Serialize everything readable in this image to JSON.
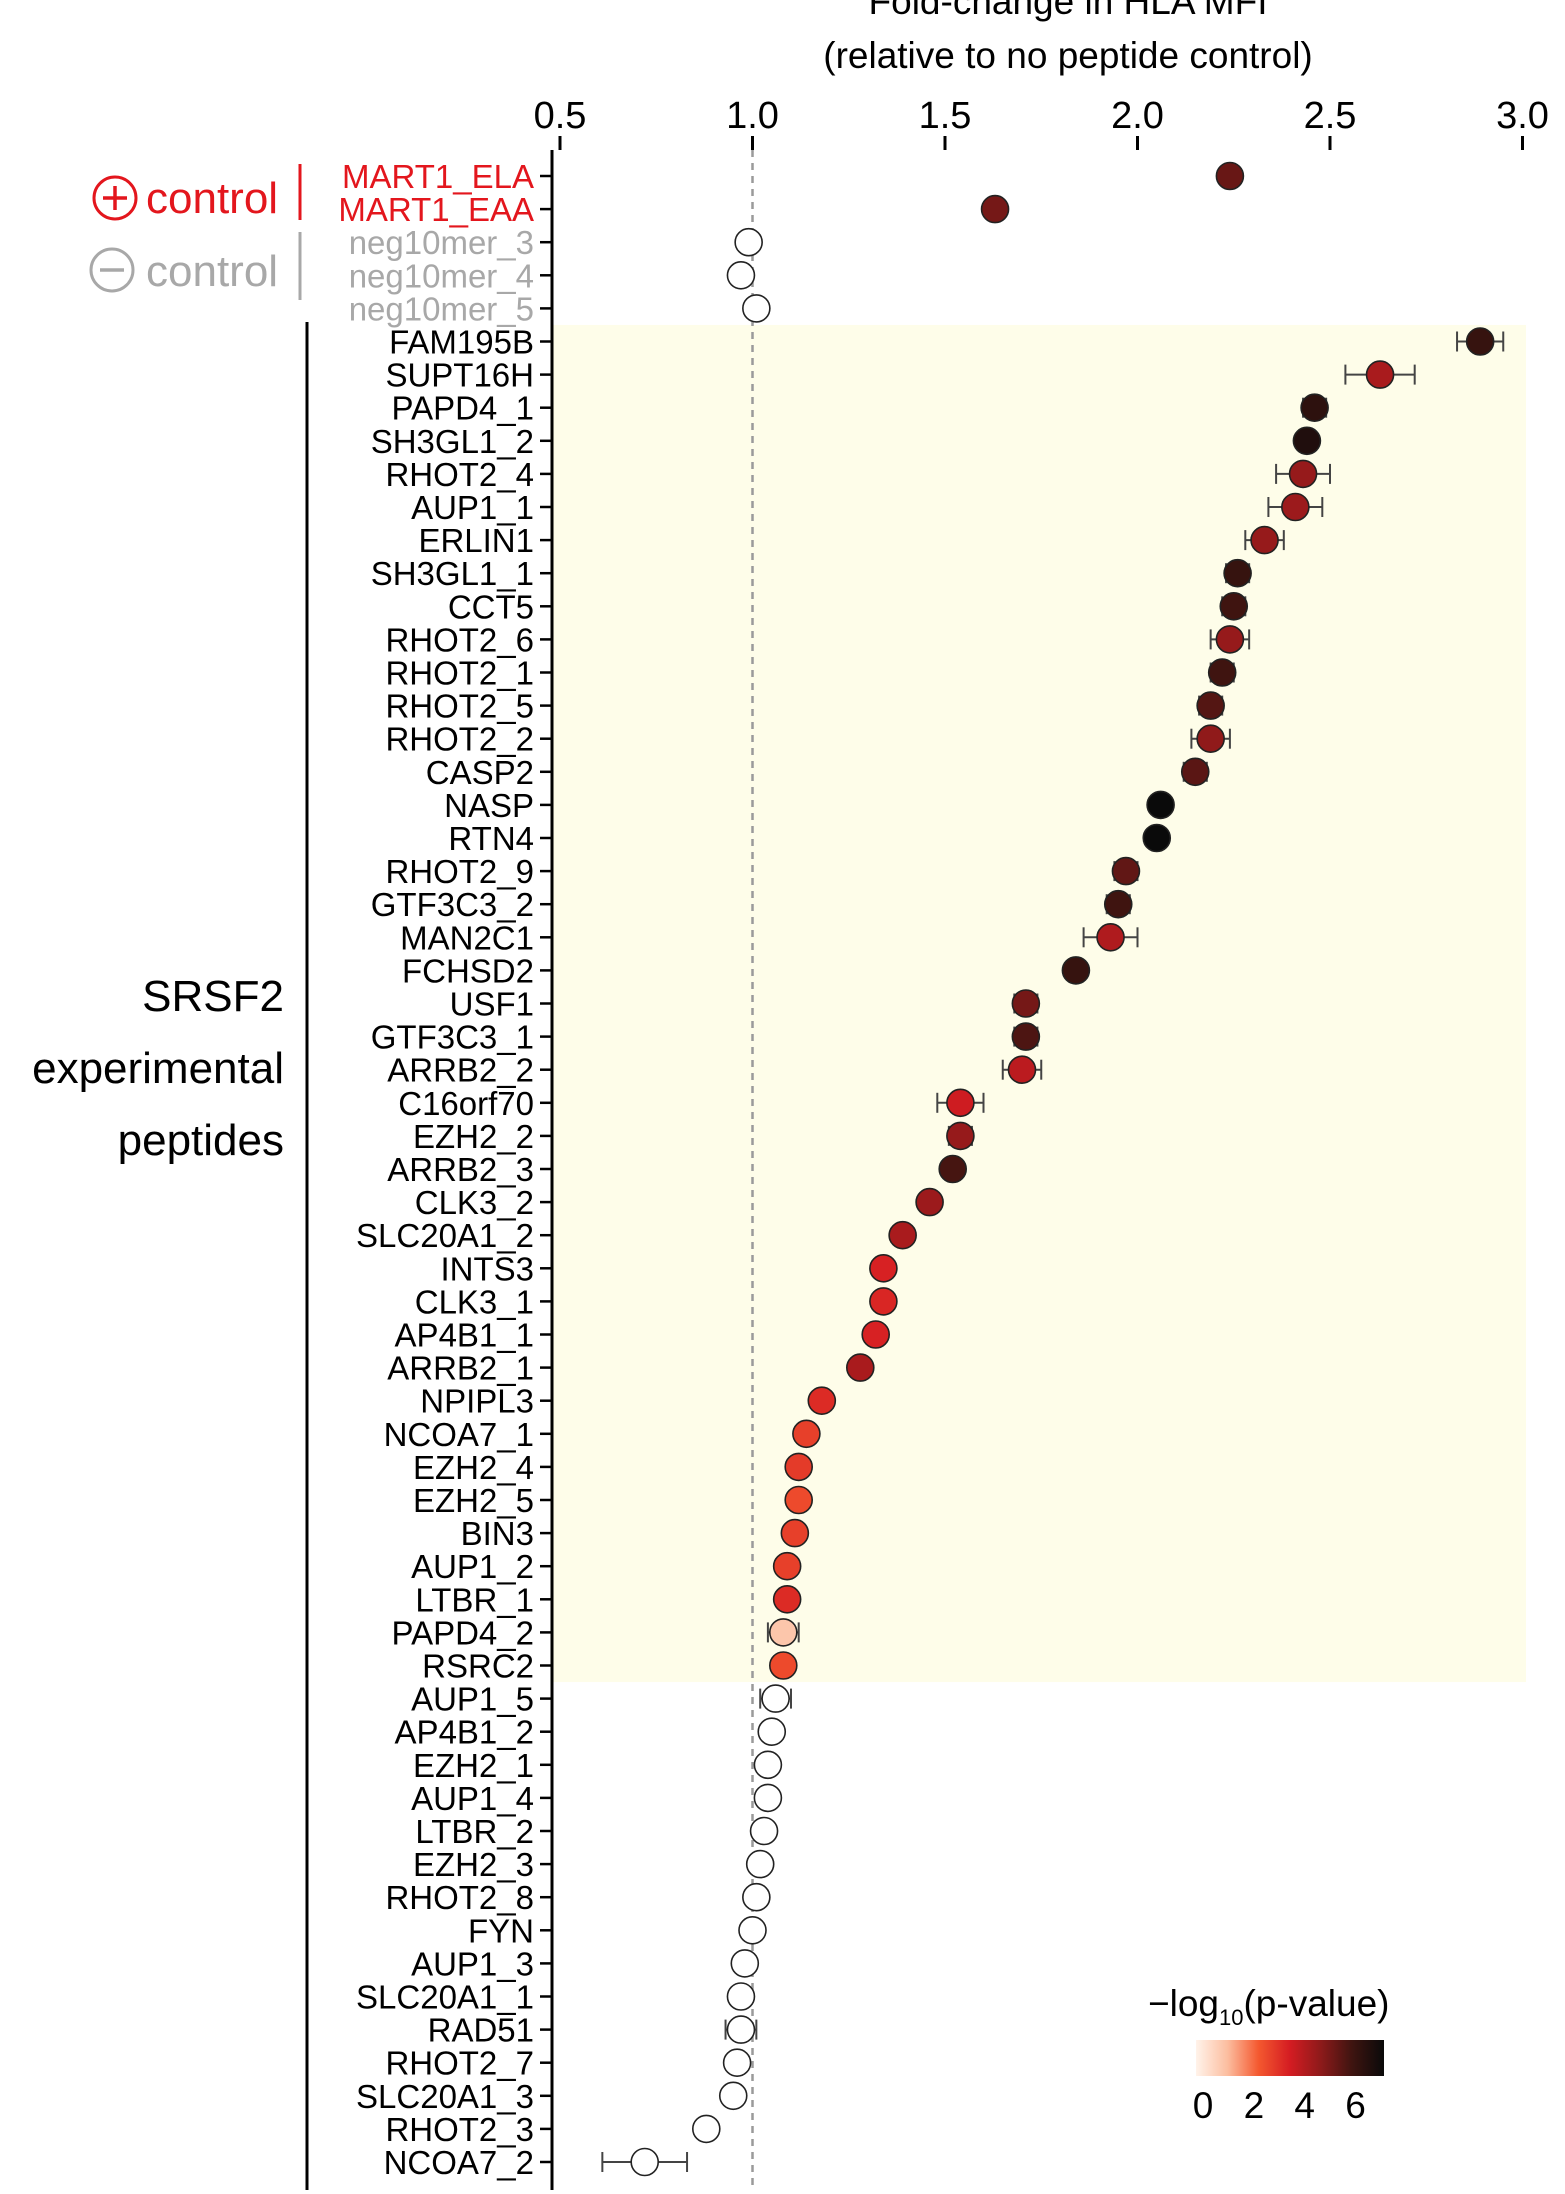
{
  "chart_data": {
    "type": "scatter",
    "title": "Fold-change in HLA MFI",
    "subtitle": "(relative to no peptide control)",
    "xlabel": "Fold-change in HLA MFI",
    "ylabel": "",
    "xlim": [
      0.5,
      3.0
    ],
    "x_ticks": [
      "0.5",
      "1.0",
      "1.5",
      "2.0",
      "2.5",
      "3.0"
    ],
    "reference_line_x": 1.0,
    "groups": {
      "positive": "control",
      "negative": "control",
      "experimental": [
        "SRSF2",
        "experimental",
        "peptides"
      ]
    },
    "colorbar": {
      "label_prefix": "−log",
      "label_sub": "10",
      "label_suffix": "(p-value)",
      "ticks": [
        "0",
        "2",
        "4",
        "6"
      ],
      "range": [
        0,
        7
      ]
    },
    "colors": {
      "positive_control": "#e3161d",
      "negative_control": "#a8a8a8",
      "highlight_band": "#fefde9",
      "reference_line": "#9a9a9a",
      "colormap": [
        "#fff3ea",
        "#fcbea0",
        "#f4582f",
        "#d41c22",
        "#8c1a1a",
        "#3d1410",
        "#0a0a0a"
      ]
    },
    "points": [
      {
        "label": "MART1_ELA",
        "x": 2.24,
        "p": 5.2,
        "group": "positive"
      },
      {
        "label": "MART1_EAA",
        "x": 1.63,
        "p": 5.0,
        "group": "positive"
      },
      {
        "label": "neg10mer_3",
        "x": 0.99,
        "p": null,
        "group": "negative"
      },
      {
        "label": "neg10mer_4",
        "x": 0.97,
        "p": null,
        "group": "negative"
      },
      {
        "label": "neg10mer_5",
        "x": 1.01,
        "p": null,
        "group": "negative"
      },
      {
        "label": "FAM195B",
        "x": 2.89,
        "p": 6.0,
        "err": 0.06,
        "group": "experimental"
      },
      {
        "label": "SUPT16H",
        "x": 2.63,
        "p": 4.2,
        "err": 0.09,
        "group": "experimental"
      },
      {
        "label": "PAPD4_1",
        "x": 2.46,
        "p": 6.2,
        "err": 0.03,
        "group": "experimental"
      },
      {
        "label": "SH3GL1_2",
        "x": 2.44,
        "p": 6.5,
        "group": "experimental"
      },
      {
        "label": "RHOT2_4",
        "x": 2.43,
        "p": 4.5,
        "err": 0.07,
        "group": "experimental"
      },
      {
        "label": "AUP1_1",
        "x": 2.41,
        "p": 4.4,
        "err": 0.07,
        "group": "experimental"
      },
      {
        "label": "ERLIN1",
        "x": 2.33,
        "p": 4.5,
        "err": 0.05,
        "group": "experimental"
      },
      {
        "label": "SH3GL1_1",
        "x": 2.26,
        "p": 6.0,
        "err": 0.03,
        "group": "experimental"
      },
      {
        "label": "CCT5",
        "x": 2.25,
        "p": 5.8,
        "err": 0.03,
        "group": "experimental"
      },
      {
        "label": "RHOT2_6",
        "x": 2.24,
        "p": 4.5,
        "err": 0.05,
        "group": "experimental"
      },
      {
        "label": "RHOT2_1",
        "x": 2.22,
        "p": 5.8,
        "err": 0.03,
        "group": "experimental"
      },
      {
        "label": "RHOT2_5",
        "x": 2.19,
        "p": 5.5,
        "err": 0.03,
        "group": "experimental"
      },
      {
        "label": "RHOT2_2",
        "x": 2.19,
        "p": 4.6,
        "err": 0.05,
        "group": "experimental"
      },
      {
        "label": "CASP2",
        "x": 2.15,
        "p": 5.4,
        "err": 0.03,
        "group": "experimental"
      },
      {
        "label": "NASP",
        "x": 2.06,
        "p": 7.0,
        "group": "experimental"
      },
      {
        "label": "RTN4",
        "x": 2.05,
        "p": 7.0,
        "group": "experimental"
      },
      {
        "label": "RHOT2_9",
        "x": 1.97,
        "p": 5.3,
        "err": 0.03,
        "group": "experimental"
      },
      {
        "label": "GTF3C3_2",
        "x": 1.95,
        "p": 5.8,
        "err": 0.03,
        "group": "experimental"
      },
      {
        "label": "MAN2C1",
        "x": 1.93,
        "p": 4.1,
        "err": 0.07,
        "group": "experimental"
      },
      {
        "label": "FCHSD2",
        "x": 1.84,
        "p": 6.0,
        "group": "experimental"
      },
      {
        "label": "USF1",
        "x": 1.71,
        "p": 5.0,
        "err": 0.03,
        "group": "experimental"
      },
      {
        "label": "GTF3C3_1",
        "x": 1.71,
        "p": 5.6,
        "err": 0.03,
        "group": "experimental"
      },
      {
        "label": "ARRB2_2",
        "x": 1.7,
        "p": 3.9,
        "err": 0.05,
        "group": "experimental"
      },
      {
        "label": "C16orf70",
        "x": 1.54,
        "p": 3.6,
        "err": 0.06,
        "group": "experimental"
      },
      {
        "label": "EZH2_2",
        "x": 1.54,
        "p": 4.5,
        "err": 0.03,
        "group": "experimental"
      },
      {
        "label": "ARRB2_3",
        "x": 1.52,
        "p": 5.7,
        "group": "experimental"
      },
      {
        "label": "CLK3_2",
        "x": 1.46,
        "p": 4.4,
        "group": "experimental"
      },
      {
        "label": "SLC20A1_2",
        "x": 1.39,
        "p": 4.2,
        "group": "experimental"
      },
      {
        "label": "INTS3",
        "x": 1.34,
        "p": 3.4,
        "group": "experimental"
      },
      {
        "label": "CLK3_1",
        "x": 1.34,
        "p": 3.3,
        "group": "experimental"
      },
      {
        "label": "AP4B1_1",
        "x": 1.32,
        "p": 3.4,
        "group": "experimental"
      },
      {
        "label": "ARRB2_1",
        "x": 1.28,
        "p": 4.2,
        "group": "experimental"
      },
      {
        "label": "NPIPL3",
        "x": 1.18,
        "p": 3.2,
        "group": "experimental"
      },
      {
        "label": "NCOA7_1",
        "x": 1.14,
        "p": 2.8,
        "group": "experimental"
      },
      {
        "label": "EZH2_4",
        "x": 1.12,
        "p": 2.9,
        "group": "experimental"
      },
      {
        "label": "EZH2_5",
        "x": 1.12,
        "p": 2.6,
        "group": "experimental"
      },
      {
        "label": "BIN3",
        "x": 1.11,
        "p": 2.8,
        "group": "experimental"
      },
      {
        "label": "AUP1_2",
        "x": 1.09,
        "p": 2.8,
        "group": "experimental"
      },
      {
        "label": "LTBR_1",
        "x": 1.09,
        "p": 3.2,
        "group": "experimental"
      },
      {
        "label": "PAPD4_2",
        "x": 1.08,
        "p": 1.0,
        "err": 0.04,
        "group": "experimental"
      },
      {
        "label": "RSRC2",
        "x": 1.08,
        "p": 2.6,
        "group": "experimental"
      },
      {
        "label": "AUP1_5",
        "x": 1.06,
        "p": null,
        "err": 0.04,
        "group": "experimental"
      },
      {
        "label": "AP4B1_2",
        "x": 1.05,
        "p": null,
        "group": "experimental"
      },
      {
        "label": "EZH2_1",
        "x": 1.04,
        "p": null,
        "group": "experimental"
      },
      {
        "label": "AUP1_4",
        "x": 1.04,
        "p": null,
        "group": "experimental"
      },
      {
        "label": "LTBR_2",
        "x": 1.03,
        "p": null,
        "group": "experimental"
      },
      {
        "label": "EZH2_3",
        "x": 1.02,
        "p": null,
        "group": "experimental"
      },
      {
        "label": "RHOT2_8",
        "x": 1.01,
        "p": null,
        "group": "experimental"
      },
      {
        "label": "FYN",
        "x": 1.0,
        "p": null,
        "group": "experimental"
      },
      {
        "label": "AUP1_3",
        "x": 0.98,
        "p": null,
        "group": "experimental"
      },
      {
        "label": "SLC20A1_1",
        "x": 0.97,
        "p": null,
        "group": "experimental"
      },
      {
        "label": "RAD51",
        "x": 0.97,
        "p": null,
        "err": 0.04,
        "group": "experimental"
      },
      {
        "label": "RHOT2_7",
        "x": 0.96,
        "p": null,
        "group": "experimental"
      },
      {
        "label": "SLC20A1_3",
        "x": 0.95,
        "p": null,
        "group": "experimental"
      },
      {
        "label": "RHOT2_3",
        "x": 0.88,
        "p": null,
        "group": "experimental"
      },
      {
        "label": "NCOA7_2",
        "x": 0.72,
        "p": null,
        "err": 0.11,
        "group": "experimental"
      }
    ]
  }
}
